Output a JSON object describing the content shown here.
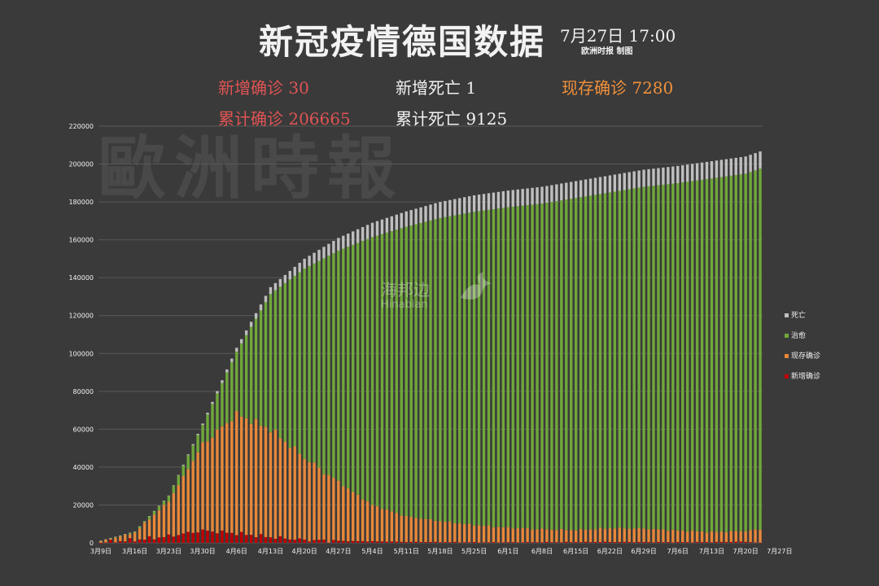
{
  "header": {
    "title": "新冠疫情德国数据",
    "date": "7月27日  17:00",
    "credit": "欧洲时报 制图"
  },
  "stats": {
    "new_confirmed": "新增确诊 30",
    "new_deaths": "新增死亡 1",
    "active": "现存确诊 7280",
    "total_confirmed": "累计确诊 206665",
    "total_deaths": "累计死亡 9125"
  },
  "watermark": "歐洲時報",
  "logo": {
    "text": "海邦边",
    "text_en": "Hinabian"
  },
  "colors": {
    "background": "#3a3a3a",
    "deaths": "#bfbfbf",
    "recovered": "#70a83a",
    "active": "#e8883a",
    "new_cases": "#c00000",
    "stat_red": "#e05454",
    "stat_orange": "#f0903c"
  },
  "chart_data": {
    "type": "bar",
    "stacked": true,
    "title": "",
    "xlabel": "",
    "ylabel": "",
    "ylim": [
      0,
      220000
    ],
    "y_ticks": [
      0,
      20000,
      40000,
      60000,
      80000,
      100000,
      120000,
      140000,
      160000,
      180000,
      200000,
      220000
    ],
    "grid": true,
    "legend_position": "right",
    "start_date": "3月9日",
    "end_date": "7月27日",
    "x_tick_labels": [
      "3月9日",
      "3月16日",
      "3月23日",
      "3月30日",
      "4月6日",
      "4月13日",
      "4月20日",
      "4月27日",
      "5月4日",
      "5月11日",
      "5月18日",
      "5月25日",
      "6月1日",
      "6月8日",
      "6月15日",
      "6月22日",
      "6月29日",
      "7月6日",
      "7月13日",
      "7月20日",
      "7月27日"
    ],
    "series_names": [
      "死亡",
      "治愈",
      "现存确诊",
      "新增确诊"
    ],
    "legend": [
      {
        "name": "死亡",
        "color": "#bfbfbf"
      },
      {
        "name": "治愈",
        "color": "#70a83a"
      },
      {
        "name": "现存确诊",
        "color": "#e8883a"
      },
      {
        "name": "新增确诊",
        "color": "#c00000"
      }
    ],
    "anchors": {
      "total": [
        [
          0,
          1100
        ],
        [
          7,
          6000
        ],
        [
          14,
          25000
        ],
        [
          21,
          63000
        ],
        [
          28,
          103000
        ],
        [
          35,
          135000
        ],
        [
          42,
          150000
        ],
        [
          49,
          161000
        ],
        [
          56,
          169000
        ],
        [
          63,
          175000
        ],
        [
          70,
          180000
        ],
        [
          77,
          183500
        ],
        [
          84,
          186000
        ],
        [
          91,
          188000
        ],
        [
          98,
          191000
        ],
        [
          105,
          194000
        ],
        [
          112,
          197000
        ],
        [
          119,
          199000
        ],
        [
          126,
          201500
        ],
        [
          133,
          204000
        ],
        [
          136,
          206665
        ]
      ],
      "active": [
        [
          0,
          900
        ],
        [
          7,
          5500
        ],
        [
          14,
          22000
        ],
        [
          21,
          52000
        ],
        [
          28,
          68000
        ],
        [
          35,
          60000
        ],
        [
          42,
          45000
        ],
        [
          49,
          32000
        ],
        [
          56,
          20000
        ],
        [
          63,
          14000
        ],
        [
          70,
          11500
        ],
        [
          77,
          9500
        ],
        [
          84,
          8000
        ],
        [
          91,
          7200
        ],
        [
          98,
          6800
        ],
        [
          105,
          7800
        ],
        [
          112,
          7600
        ],
        [
          119,
          6500
        ],
        [
          126,
          5800
        ],
        [
          133,
          6300
        ],
        [
          136,
          7280
        ]
      ],
      "deaths": [
        [
          0,
          2
        ],
        [
          7,
          20
        ],
        [
          14,
          150
        ],
        [
          21,
          700
        ],
        [
          28,
          2000
        ],
        [
          35,
          3600
        ],
        [
          42,
          5200
        ],
        [
          49,
          6700
        ],
        [
          56,
          7600
        ],
        [
          63,
          8100
        ],
        [
          70,
          8500
        ],
        [
          77,
          8700
        ],
        [
          84,
          8800
        ],
        [
          91,
          8900
        ],
        [
          98,
          8950
        ],
        [
          105,
          9000
        ],
        [
          112,
          9050
        ],
        [
          119,
          9080
        ],
        [
          126,
          9100
        ],
        [
          133,
          9115
        ],
        [
          136,
          9125
        ]
      ],
      "new_cases": [
        [
          0,
          300
        ],
        [
          7,
          1500
        ],
        [
          14,
          3500
        ],
        [
          21,
          6500
        ],
        [
          28,
          5000
        ],
        [
          35,
          3000
        ],
        [
          42,
          1500
        ],
        [
          49,
          1000
        ],
        [
          56,
          800
        ],
        [
          63,
          500
        ],
        [
          70,
          400
        ],
        [
          77,
          300
        ],
        [
          84,
          300
        ],
        [
          91,
          350
        ],
        [
          98,
          400
        ],
        [
          105,
          500
        ],
        [
          112,
          400
        ],
        [
          119,
          350
        ],
        [
          126,
          400
        ],
        [
          133,
          600
        ],
        [
          136,
          30
        ]
      ]
    }
  }
}
